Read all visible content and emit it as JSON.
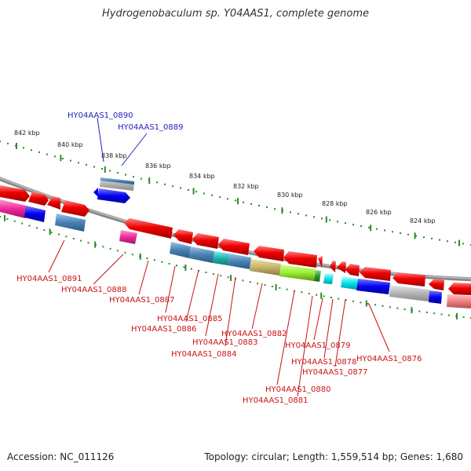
{
  "title": "Hydrogenobaculum sp. Y04AAS1, complete genome",
  "footer": {
    "accession": "Accession: NC_011126",
    "summary": "Topology: circular; Length: 1,559,514 bp; Genes: 1,680"
  },
  "colors": {
    "backbone": "#888888",
    "ticks": "#2a8a2a",
    "label_top": "#2222bb",
    "label_bottom": "#cc1111"
  },
  "scale_labels": [
    "842 kbp",
    "840 kbp",
    "838 kbp",
    "836 kbp",
    "834 kbp",
    "832 kbp",
    "830 kbp",
    "828 kbp",
    "826 kbp",
    "824 kbp"
  ],
  "gene_labels_top": [
    "HY04AAS1_0890",
    "HY04AAS1_0889"
  ],
  "gene_labels_bottom": [
    "HY04AAS1_0891",
    "HY04AAS1_0888",
    "HY04AAS1_0887",
    "HY04AAS1_0885",
    "HY04AAS1_0886",
    "HY04AAS1_0883",
    "HY04AAS1_0884",
    "HY04AAS1_0882",
    "HY04AAS1_0879",
    "HY04AAS1_0878",
    "HY04AAS1_0877",
    "HY04AAS1_0876",
    "HY04AAS1_0880",
    "HY04AAS1_0881"
  ]
}
